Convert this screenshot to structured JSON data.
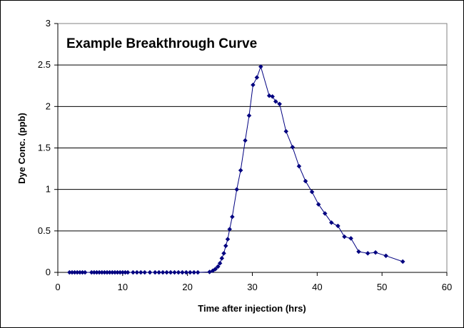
{
  "chart_data": {
    "type": "scatter",
    "title": "Example Breakthrough Curve",
    "xlabel": "Time after injection (hrs)",
    "ylabel": "Dye Conc. (ppb)",
    "xlim": [
      0,
      60
    ],
    "ylim": [
      0,
      3
    ],
    "x_ticks": [
      0,
      10,
      20,
      30,
      40,
      50,
      60
    ],
    "y_ticks": [
      0,
      0.5,
      1,
      1.5,
      2,
      2.5,
      3
    ],
    "y_tick_labels": [
      "0",
      "0.5",
      "1",
      "1.5",
      "2",
      "2.5",
      "3"
    ],
    "grid": "horizontal major gridlines",
    "line_style": "line with diamond markers",
    "color": "#000080",
    "series": [
      {
        "points": [
          [
            1.8,
            0
          ],
          [
            2.2,
            0
          ],
          [
            2.6,
            0
          ],
          [
            3.0,
            0
          ],
          [
            3.4,
            0
          ],
          [
            3.8,
            0
          ],
          [
            4.2,
            0
          ],
          [
            5.2,
            0
          ],
          [
            5.6,
            0
          ],
          [
            6.0,
            0
          ],
          [
            6.4,
            0
          ],
          [
            6.8,
            0
          ],
          [
            7.2,
            0
          ],
          [
            7.6,
            0
          ],
          [
            8.0,
            0
          ],
          [
            8.4,
            0
          ],
          [
            8.8,
            0
          ],
          [
            9.2,
            0
          ],
          [
            9.6,
            0
          ],
          [
            10.0,
            0
          ],
          [
            10.4,
            0
          ],
          [
            10.8,
            0
          ],
          [
            11.6,
            0
          ],
          [
            12.2,
            0
          ],
          [
            12.8,
            0
          ],
          [
            13.4,
            0
          ],
          [
            14.2,
            0
          ],
          [
            15.0,
            0
          ],
          [
            15.6,
            0
          ],
          [
            16.2,
            0
          ],
          [
            16.8,
            0
          ],
          [
            17.4,
            0
          ],
          [
            18.0,
            0
          ],
          [
            18.6,
            0
          ],
          [
            19.2,
            0
          ],
          [
            19.8,
            0
          ],
          [
            20.4,
            0
          ],
          [
            21.0,
            0
          ],
          [
            21.6,
            0
          ],
          [
            23.4,
            0.005
          ],
          [
            23.9,
            0.02
          ],
          [
            24.3,
            0.04
          ],
          [
            24.7,
            0.07
          ],
          [
            25.0,
            0.11
          ],
          [
            25.3,
            0.17
          ],
          [
            25.6,
            0.23
          ],
          [
            25.9,
            0.32
          ],
          [
            26.2,
            0.4
          ],
          [
            26.5,
            0.52
          ],
          [
            26.9,
            0.67
          ],
          [
            27.6,
            1.0
          ],
          [
            28.2,
            1.23
          ],
          [
            28.9,
            1.59
          ],
          [
            29.5,
            1.89
          ],
          [
            30.1,
            2.26
          ],
          [
            30.7,
            2.35
          ],
          [
            31.3,
            2.48
          ],
          [
            32.6,
            2.13
          ],
          [
            33.1,
            2.12
          ],
          [
            33.6,
            2.06
          ],
          [
            34.2,
            2.03
          ],
          [
            35.2,
            1.7
          ],
          [
            36.2,
            1.51
          ],
          [
            37.2,
            1.28
          ],
          [
            38.2,
            1.1
          ],
          [
            39.2,
            0.97
          ],
          [
            40.2,
            0.82
          ],
          [
            41.2,
            0.71
          ],
          [
            42.2,
            0.6
          ],
          [
            43.2,
            0.56
          ],
          [
            44.2,
            0.43
          ],
          [
            45.2,
            0.41
          ],
          [
            46.4,
            0.25
          ],
          [
            47.8,
            0.23
          ],
          [
            49.0,
            0.24
          ],
          [
            50.6,
            0.2
          ],
          [
            53.2,
            0.13
          ]
        ]
      }
    ]
  }
}
